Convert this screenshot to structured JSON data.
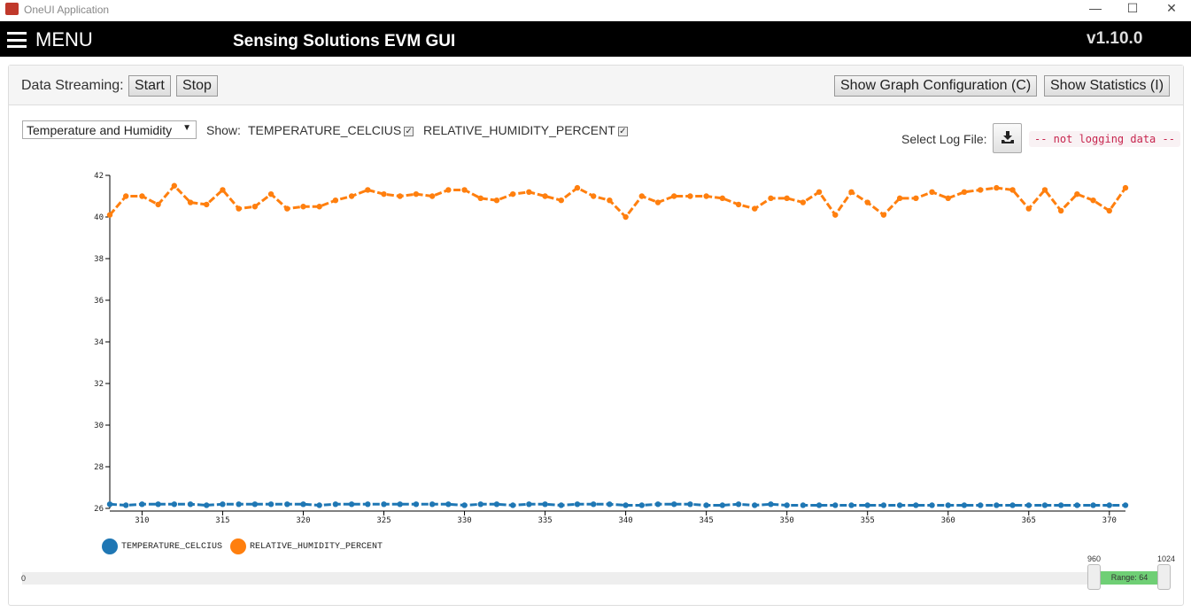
{
  "window": {
    "title": "OneUI Application",
    "controls": [
      "minimize",
      "maximize",
      "close"
    ]
  },
  "header": {
    "menu_label": "MENU",
    "title": "Sensing Solutions EVM GUI",
    "version": "v1.10.0"
  },
  "toolbar": {
    "streaming_label": "Data Streaming:",
    "start": "Start",
    "stop": "Stop",
    "show_graph_config": "Show Graph Configuration (C)",
    "show_statistics": "Show Statistics (I)"
  },
  "controls": {
    "selected_graph": "Temperature and Humidity",
    "show_label": "Show:",
    "series_toggles": [
      {
        "label": "TEMPERATURE_CELCIUS",
        "checked": true
      },
      {
        "label": "RELATIVE_HUMIDITY_PERCENT",
        "checked": true
      }
    ],
    "log_label": "Select Log File:",
    "log_status": "-- not logging data --"
  },
  "chart_data": {
    "type": "line",
    "x": [
      308,
      309,
      310,
      311,
      312,
      313,
      314,
      315,
      316,
      317,
      318,
      319,
      320,
      321,
      322,
      323,
      324,
      325,
      326,
      327,
      328,
      329,
      330,
      331,
      332,
      333,
      334,
      335,
      336,
      337,
      338,
      339,
      340,
      341,
      342,
      343,
      344,
      345,
      346,
      347,
      348,
      349,
      350,
      351,
      352,
      353,
      354,
      355,
      356,
      357,
      358,
      359,
      360,
      361,
      362,
      363,
      364,
      365,
      366,
      367,
      368,
      369,
      370,
      371
    ],
    "series": [
      {
        "name": "TEMPERATURE_CELCIUS",
        "color": "#1f77b4",
        "values": [
          26.2,
          26.15,
          26.2,
          26.2,
          26.2,
          26.2,
          26.15,
          26.2,
          26.2,
          26.2,
          26.2,
          26.2,
          26.2,
          26.15,
          26.2,
          26.2,
          26.2,
          26.2,
          26.2,
          26.2,
          26.2,
          26.2,
          26.15,
          26.2,
          26.2,
          26.15,
          26.2,
          26.2,
          26.15,
          26.2,
          26.2,
          26.2,
          26.15,
          26.15,
          26.2,
          26.2,
          26.2,
          26.15,
          26.15,
          26.2,
          26.15,
          26.2,
          26.15,
          26.15,
          26.15,
          26.15,
          26.15,
          26.15,
          26.15,
          26.15,
          26.15,
          26.15,
          26.15,
          26.15,
          26.15,
          26.15,
          26.15,
          26.15,
          26.15,
          26.15,
          26.15,
          26.15,
          26.15,
          26.15
        ]
      },
      {
        "name": "RELATIVE_HUMIDITY_PERCENT",
        "color": "#ff7f0e",
        "values": [
          40.1,
          41.0,
          41.0,
          40.6,
          41.5,
          40.7,
          40.6,
          41.3,
          40.4,
          40.5,
          41.1,
          40.4,
          40.5,
          40.5,
          40.8,
          41.0,
          41.3,
          41.1,
          41.0,
          41.1,
          41.0,
          41.3,
          41.3,
          40.9,
          40.8,
          41.1,
          41.2,
          41.0,
          40.8,
          41.4,
          41.0,
          40.8,
          40.0,
          41.0,
          40.7,
          41.0,
          41.0,
          41.0,
          40.9,
          40.6,
          40.4,
          40.9,
          40.9,
          40.7,
          41.2,
          40.1,
          41.2,
          40.7,
          40.1,
          40.9,
          40.9,
          41.2,
          40.9,
          41.2,
          41.3,
          41.4,
          41.3,
          40.4,
          41.3,
          40.3,
          41.1,
          40.8,
          40.3,
          41.4
        ]
      }
    ],
    "xlim": [
      308,
      371
    ],
    "ylim": [
      26,
      42
    ],
    "xticks": [
      310,
      315,
      320,
      325,
      330,
      335,
      340,
      345,
      350,
      355,
      360,
      365,
      370
    ],
    "yticks": [
      26,
      28,
      30,
      32,
      34,
      36,
      38,
      40,
      42
    ],
    "grid": false,
    "legend": "bottom-left"
  },
  "range_slider": {
    "min": "0",
    "low": "960",
    "high": "1024",
    "range_label": "Range: 64"
  }
}
